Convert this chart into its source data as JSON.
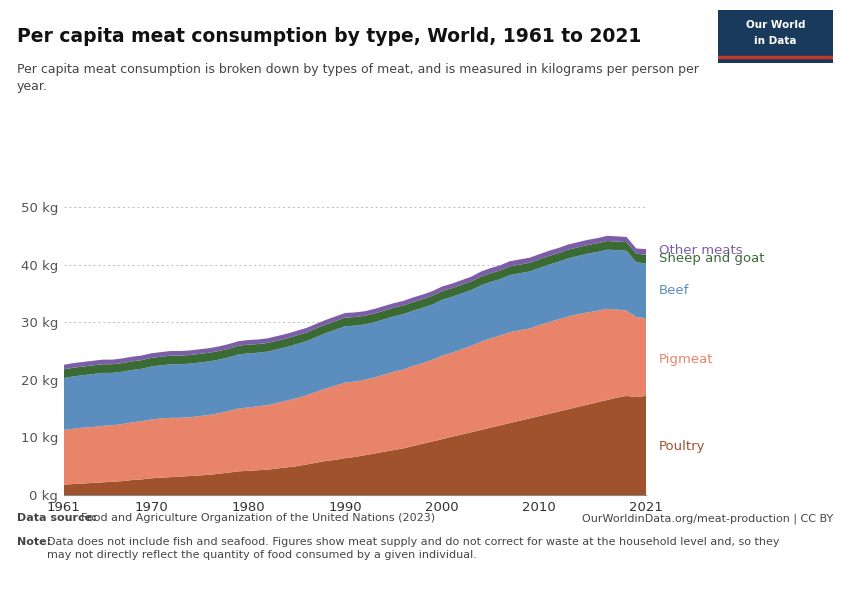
{
  "title": "Per capita meat consumption by type, World, 1961 to 2021",
  "subtitle": "Per capita meat consumption is broken down by types of meat, and is measured in kilograms per person per\nyear.",
  "datasource_bold": "Data source: ",
  "datasource_rest": "Food and Agriculture Organization of the United Nations (2023)",
  "url": "OurWorldinData.org/meat-production | CC BY",
  "note_bold": "Note: ",
  "note_rest": "Data does not include fish and seafood. Figures show meat supply and do not correct for waste at the household level and, so they\nmay not directly reflect the quantity of food consumed by a given individual.",
  "years": [
    1961,
    1962,
    1963,
    1964,
    1965,
    1966,
    1967,
    1968,
    1969,
    1970,
    1971,
    1972,
    1973,
    1974,
    1975,
    1976,
    1977,
    1978,
    1979,
    1980,
    1981,
    1982,
    1983,
    1984,
    1985,
    1986,
    1987,
    1988,
    1989,
    1990,
    1991,
    1992,
    1993,
    1994,
    1995,
    1996,
    1997,
    1998,
    1999,
    2000,
    2001,
    2002,
    2003,
    2004,
    2005,
    2006,
    2007,
    2008,
    2009,
    2010,
    2011,
    2012,
    2013,
    2014,
    2015,
    2016,
    2017,
    2018,
    2019,
    2020,
    2021
  ],
  "poultry": [
    1.8,
    1.9,
    2.0,
    2.1,
    2.2,
    2.3,
    2.4,
    2.6,
    2.7,
    2.9,
    3.0,
    3.1,
    3.2,
    3.3,
    3.4,
    3.5,
    3.7,
    3.9,
    4.1,
    4.2,
    4.3,
    4.4,
    4.6,
    4.8,
    5.0,
    5.3,
    5.6,
    5.9,
    6.1,
    6.4,
    6.6,
    6.9,
    7.2,
    7.5,
    7.8,
    8.1,
    8.5,
    8.9,
    9.3,
    9.7,
    10.1,
    10.5,
    10.9,
    11.3,
    11.7,
    12.1,
    12.5,
    12.9,
    13.3,
    13.7,
    14.1,
    14.5,
    14.9,
    15.3,
    15.7,
    16.1,
    16.5,
    16.9,
    17.2,
    17.0,
    17.2
  ],
  "pigmeat": [
    9.5,
    9.6,
    9.7,
    9.7,
    9.8,
    9.8,
    9.9,
    10.0,
    10.1,
    10.2,
    10.3,
    10.3,
    10.2,
    10.2,
    10.3,
    10.4,
    10.5,
    10.7,
    10.9,
    11.0,
    11.1,
    11.2,
    11.4,
    11.6,
    11.8,
    12.0,
    12.3,
    12.6,
    12.9,
    13.1,
    13.1,
    13.1,
    13.2,
    13.4,
    13.6,
    13.7,
    13.9,
    14.0,
    14.2,
    14.5,
    14.6,
    14.8,
    15.0,
    15.3,
    15.5,
    15.6,
    15.8,
    15.7,
    15.6,
    15.8,
    15.9,
    16.0,
    16.1,
    16.1,
    16.0,
    15.9,
    15.8,
    15.3,
    14.8,
    13.9,
    13.5
  ],
  "beef": [
    9.0,
    9.1,
    9.1,
    9.2,
    9.2,
    9.1,
    9.1,
    9.1,
    9.1,
    9.2,
    9.2,
    9.3,
    9.3,
    9.3,
    9.3,
    9.3,
    9.3,
    9.3,
    9.4,
    9.4,
    9.3,
    9.3,
    9.3,
    9.3,
    9.4,
    9.4,
    9.5,
    9.6,
    9.7,
    9.8,
    9.7,
    9.6,
    9.6,
    9.6,
    9.6,
    9.6,
    9.6,
    9.6,
    9.6,
    9.7,
    9.7,
    9.7,
    9.7,
    9.8,
    9.8,
    9.8,
    9.9,
    9.9,
    9.9,
    9.9,
    10.0,
    10.0,
    10.1,
    10.1,
    10.2,
    10.2,
    10.3,
    10.3,
    10.4,
    9.5,
    9.5
  ],
  "sheep_goat": [
    1.5,
    1.5,
    1.5,
    1.5,
    1.5,
    1.5,
    1.5,
    1.5,
    1.5,
    1.5,
    1.5,
    1.5,
    1.5,
    1.5,
    1.5,
    1.5,
    1.5,
    1.5,
    1.5,
    1.5,
    1.5,
    1.5,
    1.5,
    1.5,
    1.5,
    1.5,
    1.5,
    1.5,
    1.5,
    1.5,
    1.5,
    1.5,
    1.5,
    1.5,
    1.5,
    1.5,
    1.5,
    1.5,
    1.5,
    1.5,
    1.5,
    1.5,
    1.5,
    1.5,
    1.5,
    1.5,
    1.5,
    1.5,
    1.5,
    1.5,
    1.5,
    1.5,
    1.5,
    1.5,
    1.5,
    1.5,
    1.5,
    1.5,
    1.5,
    1.5,
    1.5
  ],
  "other": [
    0.8,
    0.8,
    0.8,
    0.8,
    0.8,
    0.8,
    0.8,
    0.8,
    0.8,
    0.8,
    0.8,
    0.8,
    0.8,
    0.8,
    0.8,
    0.8,
    0.8,
    0.8,
    0.8,
    0.8,
    0.8,
    0.8,
    0.8,
    0.8,
    0.8,
    0.8,
    0.8,
    0.8,
    0.8,
    0.8,
    0.8,
    0.8,
    0.8,
    0.8,
    0.8,
    0.8,
    0.8,
    0.8,
    0.8,
    0.8,
    0.8,
    0.8,
    0.8,
    0.9,
    0.9,
    0.9,
    0.9,
    0.9,
    0.9,
    0.9,
    0.9,
    0.9,
    0.9,
    0.9,
    0.9,
    0.9,
    0.9,
    0.9,
    0.9,
    0.9,
    1.0
  ],
  "colors": {
    "poultry": "#a0522d",
    "pigmeat": "#e8846a",
    "beef": "#5b8dbf",
    "sheep_goat": "#3a6b35",
    "other": "#7b5ea7"
  },
  "ylim": [
    0,
    50
  ],
  "yticks": [
    0,
    10,
    20,
    30,
    40,
    50
  ],
  "ytick_labels": [
    "0 kg",
    "10 kg",
    "20 kg",
    "30 kg",
    "40 kg",
    "50 kg"
  ],
  "xticks": [
    1961,
    1970,
    1980,
    1990,
    2000,
    2010,
    2021
  ],
  "xtick_labels": [
    "1961",
    "1970",
    "1980",
    "1990",
    "2000",
    "2010",
    "2021"
  ],
  "background_color": "#ffffff",
  "owid_box_color": "#1a3a5c",
  "owid_accent_color": "#c0392b"
}
